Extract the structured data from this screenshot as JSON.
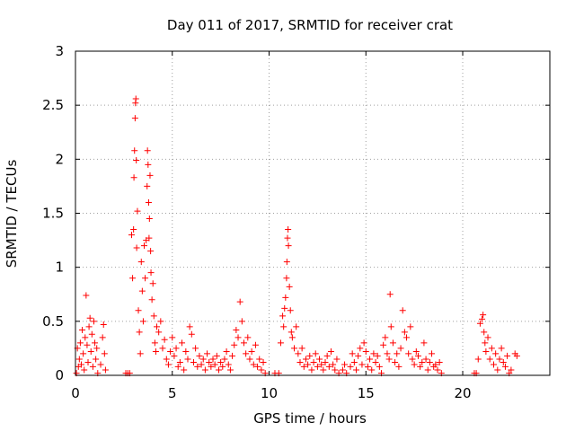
{
  "chart_data": {
    "type": "scatter",
    "title": "Day 011 of 2017, SRMTID for receiver crat",
    "xlabel": "GPS time / hours",
    "ylabel": "SRMTID / TECUs",
    "xlim": [
      0,
      24.5
    ],
    "ylim": [
      0,
      3
    ],
    "xticks": [
      0,
      5,
      10,
      15,
      20
    ],
    "yticks": [
      0,
      0.5,
      1,
      1.5,
      2,
      2.5,
      3
    ],
    "grid": true,
    "marker": "+",
    "marker_color": "#ff0000",
    "series": [
      {
        "name": "SRMTID",
        "points": [
          [
            0.05,
            0.02
          ],
          [
            0.1,
            0.25
          ],
          [
            0.15,
            0.08
          ],
          [
            0.2,
            0.15
          ],
          [
            0.25,
            0.3
          ],
          [
            0.3,
            0.1
          ],
          [
            0.35,
            0.42
          ],
          [
            0.4,
            0.2
          ],
          [
            0.45,
            0.05
          ],
          [
            0.5,
            0.35
          ],
          [
            0.55,
            0.74
          ],
          [
            0.6,
            0.28
          ],
          [
            0.65,
            0.12
          ],
          [
            0.7,
            0.45
          ],
          [
            0.75,
            0.53
          ],
          [
            0.8,
            0.22
          ],
          [
            0.85,
            0.38
          ],
          [
            0.9,
            0.08
          ],
          [
            0.95,
            0.5
          ],
          [
            1.0,
            0.3
          ],
          [
            1.05,
            0.15
          ],
          [
            1.1,
            0.25
          ],
          [
            1.15,
            0.02
          ],
          [
            1.3,
            0.1
          ],
          [
            1.4,
            0.35
          ],
          [
            1.45,
            0.47
          ],
          [
            1.5,
            0.2
          ],
          [
            1.55,
            0.05
          ],
          [
            2.6,
            0.02
          ],
          [
            2.7,
            0.02
          ],
          [
            2.8,
            0.02
          ],
          [
            2.9,
            1.3
          ],
          [
            2.95,
            0.9
          ],
          [
            3.0,
            1.35
          ],
          [
            3.02,
            1.83
          ],
          [
            3.05,
            2.08
          ],
          [
            3.08,
            2.38
          ],
          [
            3.1,
            2.52
          ],
          [
            3.12,
            2.56
          ],
          [
            3.14,
            1.99
          ],
          [
            3.16,
            1.18
          ],
          [
            3.2,
            1.52
          ],
          [
            3.25,
            0.6
          ],
          [
            3.3,
            0.4
          ],
          [
            3.35,
            0.2
          ],
          [
            3.4,
            1.05
          ],
          [
            3.45,
            0.78
          ],
          [
            3.5,
            0.5
          ],
          [
            3.55,
            1.2
          ],
          [
            3.6,
            0.9
          ],
          [
            3.65,
            1.25
          ],
          [
            3.7,
            1.75
          ],
          [
            3.72,
            2.08
          ],
          [
            3.75,
            1.95
          ],
          [
            3.78,
            1.6
          ],
          [
            3.8,
            1.27
          ],
          [
            3.82,
            1.45
          ],
          [
            3.85,
            1.85
          ],
          [
            3.88,
            1.15
          ],
          [
            3.9,
            0.95
          ],
          [
            3.95,
            0.7
          ],
          [
            4.0,
            0.85
          ],
          [
            4.05,
            0.55
          ],
          [
            4.1,
            0.3
          ],
          [
            4.15,
            0.22
          ],
          [
            4.2,
            0.45
          ],
          [
            4.3,
            0.4
          ],
          [
            4.4,
            0.5
          ],
          [
            4.5,
            0.25
          ],
          [
            4.6,
            0.33
          ],
          [
            4.7,
            0.15
          ],
          [
            4.8,
            0.1
          ],
          [
            4.9,
            0.22
          ],
          [
            5.0,
            0.35
          ],
          [
            5.1,
            0.18
          ],
          [
            5.2,
            0.25
          ],
          [
            5.3,
            0.08
          ],
          [
            5.4,
            0.12
          ],
          [
            5.5,
            0.3
          ],
          [
            5.6,
            0.05
          ],
          [
            5.7,
            0.22
          ],
          [
            5.8,
            0.15
          ],
          [
            5.9,
            0.45
          ],
          [
            6.0,
            0.38
          ],
          [
            6.1,
            0.12
          ],
          [
            6.2,
            0.25
          ],
          [
            6.3,
            0.08
          ],
          [
            6.4,
            0.18
          ],
          [
            6.5,
            0.1
          ],
          [
            6.6,
            0.15
          ],
          [
            6.7,
            0.05
          ],
          [
            6.8,
            0.2
          ],
          [
            6.9,
            0.12
          ],
          [
            7.0,
            0.08
          ],
          [
            7.1,
            0.15
          ],
          [
            7.2,
            0.1
          ],
          [
            7.3,
            0.18
          ],
          [
            7.4,
            0.05
          ],
          [
            7.5,
            0.12
          ],
          [
            7.6,
            0.08
          ],
          [
            7.7,
            0.15
          ],
          [
            7.8,
            0.22
          ],
          [
            7.9,
            0.1
          ],
          [
            8.0,
            0.05
          ],
          [
            8.1,
            0.18
          ],
          [
            8.2,
            0.28
          ],
          [
            8.3,
            0.42
          ],
          [
            8.4,
            0.35
          ],
          [
            8.5,
            0.68
          ],
          [
            8.6,
            0.5
          ],
          [
            8.7,
            0.3
          ],
          [
            8.8,
            0.2
          ],
          [
            8.9,
            0.35
          ],
          [
            9.0,
            0.15
          ],
          [
            9.1,
            0.22
          ],
          [
            9.2,
            0.1
          ],
          [
            9.3,
            0.28
          ],
          [
            9.4,
            0.08
          ],
          [
            9.5,
            0.15
          ],
          [
            9.6,
            0.05
          ],
          [
            9.7,
            0.12
          ],
          [
            9.8,
            0.02
          ],
          [
            10.3,
            0.02
          ],
          [
            10.5,
            0.02
          ],
          [
            10.6,
            0.3
          ],
          [
            10.7,
            0.55
          ],
          [
            10.75,
            0.45
          ],
          [
            10.8,
            0.62
          ],
          [
            10.85,
            0.72
          ],
          [
            10.9,
            0.9
          ],
          [
            10.92,
            1.05
          ],
          [
            10.95,
            1.27
          ],
          [
            10.98,
            1.35
          ],
          [
            11.0,
            1.2
          ],
          [
            11.05,
            0.82
          ],
          [
            11.1,
            0.6
          ],
          [
            11.15,
            0.4
          ],
          [
            11.2,
            0.35
          ],
          [
            11.3,
            0.25
          ],
          [
            11.4,
            0.45
          ],
          [
            11.5,
            0.2
          ],
          [
            11.6,
            0.12
          ],
          [
            11.7,
            0.25
          ],
          [
            11.8,
            0.08
          ],
          [
            11.9,
            0.15
          ],
          [
            12.0,
            0.1
          ],
          [
            12.1,
            0.18
          ],
          [
            12.2,
            0.05
          ],
          [
            12.3,
            0.12
          ],
          [
            12.4,
            0.2
          ],
          [
            12.5,
            0.08
          ],
          [
            12.6,
            0.15
          ],
          [
            12.7,
            0.1
          ],
          [
            12.8,
            0.05
          ],
          [
            12.9,
            0.12
          ],
          [
            13.0,
            0.18
          ],
          [
            13.1,
            0.08
          ],
          [
            13.2,
            0.22
          ],
          [
            13.3,
            0.1
          ],
          [
            13.4,
            0.05
          ],
          [
            13.5,
            0.15
          ],
          [
            13.6,
            0.02
          ],
          [
            13.8,
            0.05
          ],
          [
            13.9,
            0.1
          ],
          [
            14.0,
            0.02
          ],
          [
            14.2,
            0.08
          ],
          [
            14.3,
            0.2
          ],
          [
            14.4,
            0.12
          ],
          [
            14.5,
            0.05
          ],
          [
            14.6,
            0.18
          ],
          [
            14.7,
            0.25
          ],
          [
            14.8,
            0.1
          ],
          [
            14.9,
            0.3
          ],
          [
            15.0,
            0.22
          ],
          [
            15.1,
            0.08
          ],
          [
            15.2,
            0.15
          ],
          [
            15.3,
            0.05
          ],
          [
            15.4,
            0.2
          ],
          [
            15.5,
            0.12
          ],
          [
            15.6,
            0.18
          ],
          [
            15.7,
            0.08
          ],
          [
            15.8,
            0.02
          ],
          [
            15.9,
            0.28
          ],
          [
            16.0,
            0.35
          ],
          [
            16.1,
            0.2
          ],
          [
            16.2,
            0.15
          ],
          [
            16.25,
            0.75
          ],
          [
            16.3,
            0.45
          ],
          [
            16.4,
            0.3
          ],
          [
            16.5,
            0.12
          ],
          [
            16.6,
            0.2
          ],
          [
            16.7,
            0.08
          ],
          [
            16.8,
            0.25
          ],
          [
            16.9,
            0.6
          ],
          [
            17.0,
            0.4
          ],
          [
            17.1,
            0.35
          ],
          [
            17.2,
            0.2
          ],
          [
            17.3,
            0.45
          ],
          [
            17.4,
            0.15
          ],
          [
            17.5,
            0.1
          ],
          [
            17.6,
            0.22
          ],
          [
            17.7,
            0.18
          ],
          [
            17.8,
            0.08
          ],
          [
            17.9,
            0.12
          ],
          [
            18.0,
            0.3
          ],
          [
            18.1,
            0.15
          ],
          [
            18.2,
            0.05
          ],
          [
            18.3,
            0.12
          ],
          [
            18.4,
            0.2
          ],
          [
            18.5,
            0.08
          ],
          [
            18.6,
            0.1
          ],
          [
            18.7,
            0.05
          ],
          [
            18.8,
            0.12
          ],
          [
            18.9,
            0.02
          ],
          [
            20.6,
            0.02
          ],
          [
            20.7,
            0.02
          ],
          [
            20.8,
            0.15
          ],
          [
            20.9,
            0.48
          ],
          [
            21.0,
            0.52
          ],
          [
            21.05,
            0.56
          ],
          [
            21.1,
            0.4
          ],
          [
            21.15,
            0.3
          ],
          [
            21.2,
            0.22
          ],
          [
            21.3,
            0.35
          ],
          [
            21.4,
            0.15
          ],
          [
            21.5,
            0.25
          ],
          [
            21.6,
            0.1
          ],
          [
            21.7,
            0.2
          ],
          [
            21.8,
            0.05
          ],
          [
            21.9,
            0.15
          ],
          [
            22.0,
            0.25
          ],
          [
            22.1,
            0.12
          ],
          [
            22.2,
            0.08
          ],
          [
            22.3,
            0.18
          ],
          [
            22.4,
            0.02
          ],
          [
            22.5,
            0.05
          ],
          [
            22.7,
            0.2
          ],
          [
            22.8,
            0.18
          ]
        ]
      }
    ]
  }
}
